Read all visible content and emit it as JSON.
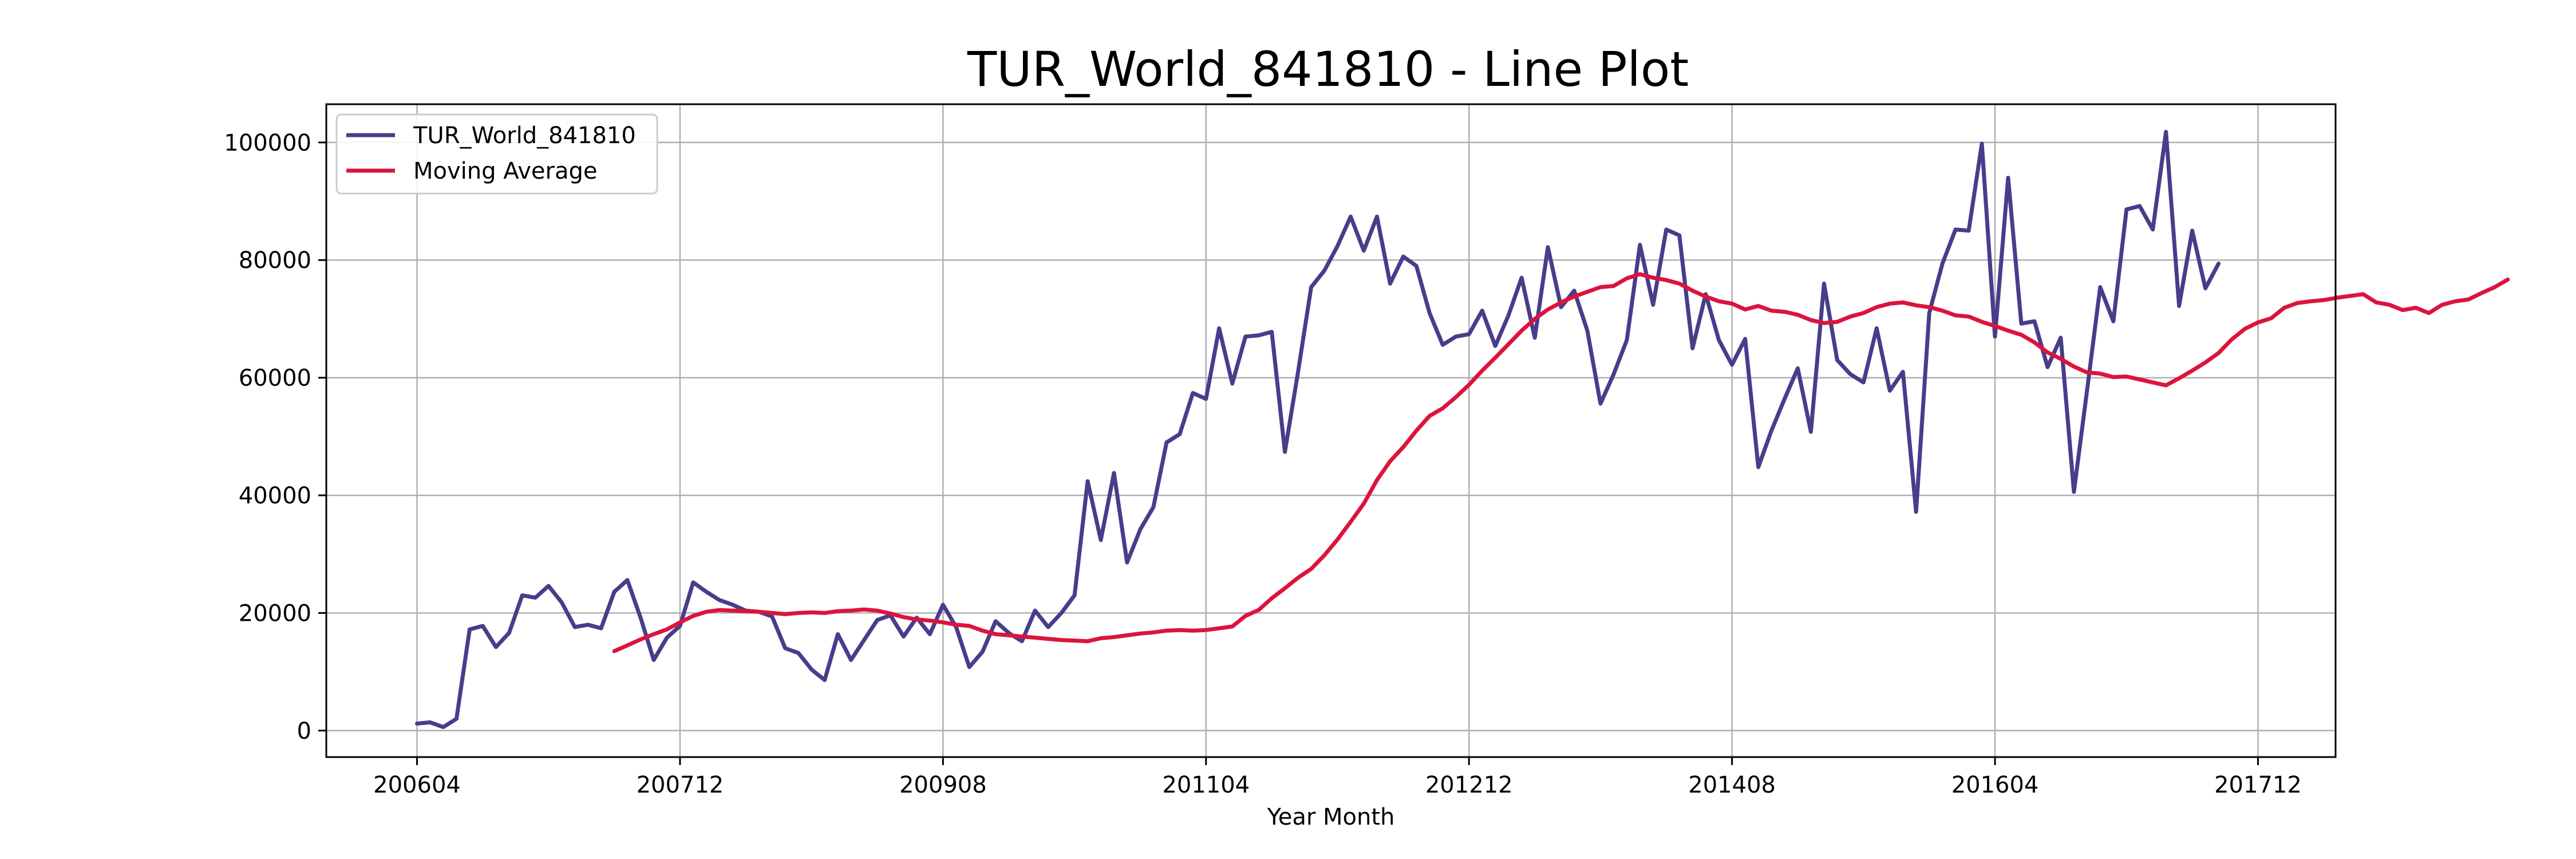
{
  "chart_data": {
    "type": "line",
    "title": "TUR_World_841810 - Line Plot",
    "xlabel": "Year Month",
    "ylabel": "",
    "x_tick_labels": [
      "200604",
      "200712",
      "200908",
      "201104",
      "201212",
      "201408",
      "201604",
      "201712"
    ],
    "y_tick_labels": [
      "0",
      "20000",
      "40000",
      "60000",
      "80000",
      "100000"
    ],
    "ylim": [
      -4500,
      106500
    ],
    "grid": true,
    "legend": "top-left",
    "series": [
      {
        "name": "TUR_World_841810",
        "color": "#483D8B",
        "start": "200604",
        "values": [
          1200,
          1400,
          600,
          2000,
          17200,
          17800,
          14200,
          16600,
          23000,
          22600,
          24600,
          21800,
          17600,
          18000,
          17400,
          23600,
          25600,
          19200,
          12000,
          15800,
          17800,
          25200,
          23600,
          22200,
          21400,
          20400,
          20200,
          19400,
          14000,
          13200,
          10400,
          8600,
          16400,
          12000,
          15400,
          18800,
          19600,
          16000,
          19200,
          16400,
          21400,
          17600,
          10800,
          13400,
          18600,
          16600,
          15200,
          20400,
          17600,
          20000,
          23000,
          42400,
          32400,
          43800,
          28600,
          34200,
          38000,
          49000,
          50400,
          57400,
          56400,
          68400,
          59000,
          67000,
          67200,
          67800,
          47400,
          61000,
          75400,
          78200,
          82400,
          87400,
          81600,
          87400,
          76000,
          80600,
          79000,
          71000,
          65600,
          67000,
          67400,
          71400,
          65400,
          70600,
          77000,
          66800,
          82200,
          72000,
          74800,
          68000,
          55600,
          60600,
          66400,
          82600,
          72400,
          85200,
          84200,
          65000,
          74200,
          66400,
          62200,
          66600,
          44800,
          51000,
          56400,
          61600,
          50800,
          76000,
          63000,
          60600,
          59200,
          68400,
          57800,
          61000,
          37200,
          71000,
          79400,
          85200,
          85000,
          99800,
          67000,
          94000,
          69200,
          69600,
          61800,
          66800,
          40600,
          57800,
          75400,
          69600,
          88600,
          89200,
          85200,
          101800,
          72200,
          85000,
          75200,
          79400
        ]
      },
      {
        "name": "Moving Average",
        "color": "#DC143C",
        "start": "200707",
        "values": [
          13500,
          14500,
          15500,
          16400,
          17200,
          18400,
          19500,
          20200,
          20500,
          20400,
          20300,
          20200,
          20000,
          19800,
          20000,
          20100,
          20000,
          20300,
          20400,
          20600,
          20400,
          19900,
          19300,
          18900,
          18700,
          18400,
          18000,
          17800,
          17000,
          16400,
          16200,
          16000,
          15800,
          15600,
          15400,
          15300,
          15200,
          15700,
          15900,
          16200,
          16500,
          16700,
          17000,
          17100,
          17000,
          17100,
          17400,
          17700,
          19500,
          20500,
          22500,
          24200,
          26000,
          27500,
          29800,
          32500,
          35500,
          38600,
          42600,
          45800,
          48200,
          51000,
          53500,
          54800,
          56700,
          58800,
          61200,
          63400,
          65700,
          68000,
          70000,
          71600,
          72800,
          73800,
          74600,
          75400,
          75600,
          76900,
          77600,
          77000,
          76600,
          76000,
          74800,
          73800,
          73000,
          72600,
          71600,
          72200,
          71400,
          71200,
          70700,
          69800,
          69300,
          69500,
          70400,
          71000,
          72000,
          72600,
          72800,
          72300,
          72000,
          71400,
          70600,
          70400,
          69500,
          68800,
          68000,
          67300,
          66000,
          64300,
          63200,
          61900,
          60900,
          60700,
          60100,
          60200,
          59700,
          59200,
          58700,
          59900,
          61200,
          62600,
          64200,
          66500,
          68300,
          69400,
          70100,
          71900,
          72700,
          73000,
          73200,
          73600,
          73900,
          74200,
          72800,
          72400,
          71500,
          71900,
          71000,
          72400,
          73000,
          73300,
          74400,
          75400,
          76700
        ]
      }
    ]
  }
}
